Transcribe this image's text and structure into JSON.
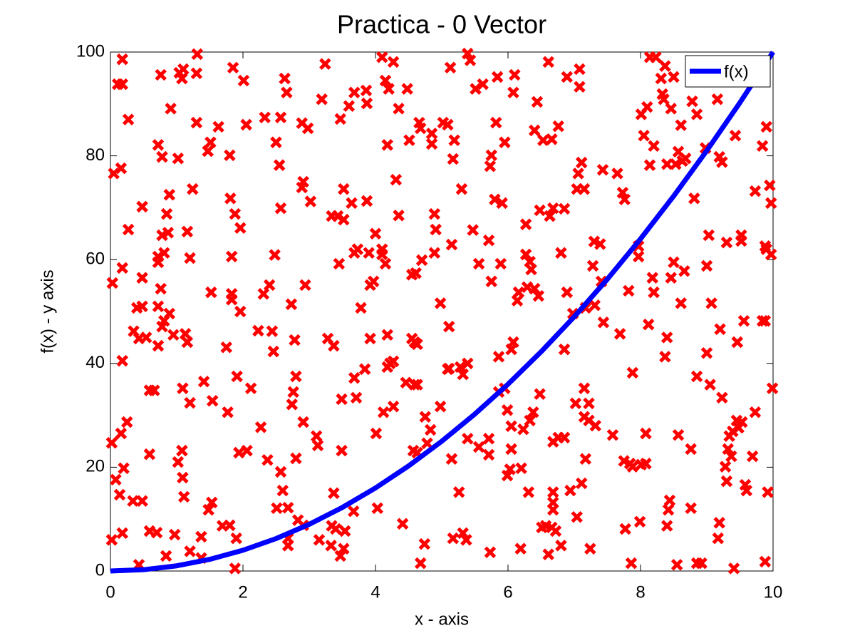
{
  "chart_data": {
    "type": "scatter",
    "title": "Practica - 0 Vector",
    "xlabel": "x - axis",
    "ylabel": "f(x) - y axis",
    "xlim": [
      0,
      10
    ],
    "ylim": [
      0,
      100
    ],
    "xticks": [
      0,
      2,
      4,
      6,
      8,
      10
    ],
    "yticks": [
      0,
      20,
      40,
      60,
      80,
      100
    ],
    "grid": false,
    "legend": "northeast",
    "series": [
      {
        "name": "f(x)",
        "type": "line",
        "color": "#0000ff",
        "x": [
          0,
          0.5,
          1,
          1.5,
          2,
          2.5,
          3,
          3.5,
          4,
          4.5,
          5,
          5.5,
          6,
          6.5,
          7,
          7.5,
          8,
          8.5,
          9,
          9.5,
          10
        ],
        "values": [
          0,
          0.25,
          1,
          2.25,
          4,
          6.25,
          9,
          12.25,
          16,
          20.25,
          25,
          30.25,
          36,
          42.25,
          49,
          56.25,
          64,
          72.25,
          81,
          90.25,
          100
        ]
      },
      {
        "type": "scatter",
        "marker": "x",
        "color": "#ff0000",
        "x": [
          0.18,
          0.11,
          0.18,
          0.27,
          0.05,
          0.16,
          0.27,
          0.03,
          0.18,
          0.18,
          0.02,
          0.16,
          0.25,
          0.2,
          0.08,
          0.14,
          0.02,
          0.18,
          0.34,
          0.48,
          0.43,
          0.35,
          0.43,
          0.54,
          0.4,
          0.48,
          0.48,
          0.48,
          0.59,
          0.59,
          0.66,
          0.59,
          0.7,
          0.84,
          0.97,
          0.76,
          0.72,
          0.78,
          0.78,
          0.87,
          0.89,
          0.85,
          0.72,
          0.81,
          0.72,
          0.76,
          0.72,
          0.81,
          0.78,
          0.89,
          0.95,
          0.72,
          0.91,
          1.02,
          1.04,
          1.1,
          1.08,
          1.16,
          1.2,
          1.13,
          1.16,
          1.09,
          1.2,
          1.08,
          1.02,
          1.09,
          1.11,
          1.2,
          1.37,
          1.37,
          1.24,
          1.3,
          1.31,
          1.3,
          1.41,
          1.48,
          1.53,
          1.54,
          1.52,
          1.47,
          1.51,
          1.63,
          1.75,
          1.77,
          1.69,
          1.8,
          1.8,
          1.81,
          1.83,
          1.83,
          1.83,
          1.85,
          1.88,
          1.96,
          1.91,
          1.96,
          1.88,
          1.9,
          1.94,
          2.06,
          2.01,
          2.05,
          2.12,
          2.23,
          2.27,
          2.31,
          2.33,
          2.37,
          2.4,
          2.44,
          2.46,
          2.48,
          2.5,
          2.55,
          2.57,
          2.57,
          2.51,
          2.57,
          2.6,
          2.68,
          2.68,
          2.68,
          2.63,
          2.66,
          2.73,
          2.78,
          2.74,
          2.76,
          2.8,
          2.8,
          2.83,
          2.91,
          2.89,
          2.89,
          2.91,
          2.94,
          2.91,
          2.98,
          3.02,
          3.11,
          3.13,
          3.15,
          3.19,
          3.24,
          3.28,
          3.37,
          3.33,
          3.34,
          3.4,
          3.37,
          3.34,
          3.43,
          3.52,
          3.45,
          3.47,
          3.52,
          3.49,
          3.49,
          3.47,
          3.52,
          3.54,
          3.6,
          3.68,
          3.64,
          3.68,
          3.73,
          3.68,
          3.71,
          3.67,
          3.78,
          3.86,
          3.87,
          3.87,
          3.84,
          3.9,
          3.92,
          3.92,
          3.97,
          4,
          4.01,
          4.03,
          4.1,
          4.1,
          4.1,
          4.12,
          4.15,
          4.15,
          4.18,
          4.22,
          4.18,
          4.18,
          4.2,
          4.27,
          4.27,
          4.27,
          4.31,
          4.35,
          4.35,
          4.41,
          4.46,
          4.48,
          4.51,
          4.55,
          4.59,
          4.63,
          4.55,
          4.61,
          4.57,
          4.63,
          4.59,
          4.63,
          4.68,
          4.74,
          4.66,
          4.68,
          4.7,
          4.75,
          4.78,
          4.83,
          4.85,
          4.85,
          4.89,
          4.91,
          4.89,
          4.98,
          4.98,
          5.02,
          5.09,
          5.09,
          5.11,
          5.11,
          5.13,
          5.15,
          5.15,
          5.17,
          5.17,
          5.19,
          5.26,
          5.28,
          5.32,
          5.39,
          5.3,
          5.32,
          5.37,
          5.39,
          5.43,
          5.39,
          5.47,
          5.51,
          5.56,
          5.56,
          5.62,
          5.71,
          5.71,
          5.71,
          5.73,
          5.75,
          5.75,
          5.73,
          5.8,
          5.82,
          5.84,
          5.86,
          5.86,
          5.89,
          5.91,
          5.95,
          5.95,
          5.99,
          5.99,
          6.03,
          6.05,
          6.05,
          6.05,
          6.08,
          6.08,
          6.1,
          6.14,
          6.16,
          6.19,
          6.2,
          6.23,
          6.27,
          6.27,
          6.29,
          6.33,
          6.33,
          6.31,
          6.35,
          6.38,
          6.4,
          6.4,
          6.44,
          6.46,
          6.48,
          6.48,
          6.51,
          6.57,
          6.61,
          6.53,
          6.61,
          6.63,
          6.66,
          6.68,
          6.68,
          6.68,
          6.68,
          6.66,
          6.72,
          6.68,
          6.76,
          6.85,
          6.76,
          6.8,
          6.85,
          6.8,
          6.85,
          6.89,
          6.89,
          6.94,
          6.98,
          7.02,
          7.04,
          7.06,
          7.04,
          7.08,
          7.08,
          7.11,
          7.15,
          7.11,
          7.15,
          7.15,
          7.22,
          7.17,
          7.17,
          7.22,
          7.24,
          7.28,
          7.3,
          7.39,
          7.31,
          7.32,
          7.41,
          7.43,
          7.44,
          7.58,
          7.65,
          7.69,
          7.73,
          7.76,
          7.75,
          7.77,
          7.82,
          7.84,
          7.88,
          7.86,
          7.88,
          7.97,
          7.97,
          7.99,
          8.01,
          8.01,
          8.08,
          8.05,
          8.08,
          8.1,
          8.12,
          8.14,
          8.14,
          8.18,
          8.2,
          8.2,
          8.23,
          8.31,
          8.33,
          8.35,
          8.37,
          8.37,
          8.4,
          8.4,
          8.4,
          8.42,
          8.44,
          8.46,
          8.5,
          8.46,
          8.5,
          8.53,
          8.57,
          8.55,
          8.57,
          8.61,
          8.61,
          8.63,
          8.66,
          8.68,
          8.76,
          8.76,
          8.78,
          8.81,
          8.85,
          8.85,
          8.85,
          8.92,
          8.98,
          9,
          9,
          9.03,
          9.05,
          9.07,
          9.16,
          9.17,
          9.19,
          9.23,
          9.19,
          9.2,
          9.23,
          9.28,
          9.3,
          9.3,
          9.32,
          9.34,
          9.37,
          9.39,
          9.41,
          9.43,
          9.45,
          9.46,
          9.48,
          9.52,
          9.52,
          9.53,
          9.56,
          9.58,
          9.6,
          9.69,
          9.73,
          9.73,
          9.84,
          9.84,
          9.88,
          9.88,
          9.88,
          9.9,
          9.9,
          9.92,
          9.95,
          9.97,
          9.97,
          9.99
        ],
        "values": [
          98.6,
          93.8,
          93.8,
          87,
          76.6,
          77.6,
          65.8,
          55.5,
          58.4,
          40.5,
          24.7,
          26.5,
          28.7,
          19.8,
          17.6,
          14.7,
          6,
          7.3,
          13.5,
          13.5,
          1.2,
          46.2,
          44.8,
          45,
          50.7,
          51,
          70.2,
          56.5,
          22.5,
          34.8,
          34.8,
          7.7,
          7.4,
          2.9,
          7,
          95.6,
          82.1,
          79.8,
          64.7,
          65.2,
          72.5,
          68.8,
          60.6,
          61.3,
          59.5,
          54.4,
          51,
          48.2,
          47.1,
          49.6,
          45.5,
          43.4,
          89.1,
          79.5,
          96,
          96.7,
          94.9,
          65.4,
          60.3,
          45.7,
          44.1,
          35.2,
          32.4,
          23.2,
          21,
          18,
          14.3,
          3.8,
          2.5,
          6.6,
          73.6,
          86.4,
          99.6,
          95.9,
          36.5,
          11.8,
          13.2,
          32.8,
          53.7,
          80.9,
          82.6,
          85.6,
          43.1,
          30.6,
          8.7,
          8.8,
          80.1,
          71.8,
          60.6,
          53.4,
          52.3,
          97,
          68.8,
          66.1,
          37.5,
          50,
          0.5,
          6.3,
          22.8,
          23.2,
          94.5,
          86,
          35.2,
          46.3,
          27.7,
          53.4,
          87.4,
          21.4,
          55.1,
          46.2,
          42.3,
          60.9,
          82.6,
          78.2,
          87.4,
          69.9,
          12.1,
          19.1,
          15.5,
          12.2,
          4.9,
          6.3,
          94.9,
          92.2,
          51.4,
          44.5,
          32.1,
          34.5,
          37.5,
          21.7,
          9.8,
          8.8,
          86.3,
          73.9,
          75,
          55.1,
          28.7,
          85.3,
          71.2,
          26,
          24.2,
          6,
          90.9,
          97.7,
          44.8,
          43.4,
          4.9,
          8.7,
          8.1,
          15,
          68.4,
          68.4,
          67.7,
          59.2,
          87.1,
          73.6,
          23.2,
          33.1,
          2.9,
          4.3,
          7.7,
          89.6,
          92.2,
          70.9,
          61.3,
          62,
          37.2,
          33.4,
          11.5,
          50.7,
          92.6,
          90.1,
          71.3,
          38.9,
          61.3,
          44.8,
          55.1,
          55.8,
          65,
          26.5,
          12.1,
          62,
          61,
          99,
          30.6,
          59.2,
          94.5,
          39.3,
          40,
          45.5,
          82.1,
          92.9,
          98.1,
          31.7,
          40.4,
          75.4,
          89.1,
          68.5,
          9.1,
          36.3,
          92.9,
          83,
          44.8,
          44.1,
          43.7,
          57.1,
          57.4,
          23.2,
          22.8,
          35.9,
          35.9,
          1.5,
          5.2,
          86.4,
          85.3,
          59.9,
          29.7,
          24.6,
          27.2,
          84.3,
          82.3,
          61.3,
          65.8,
          68.8,
          51.6,
          31.7,
          86.4,
          86,
          38.9,
          47.1,
          39,
          97,
          62.9,
          21.6,
          79.4,
          6.3,
          83,
          15.2,
          39.3,
          37.9,
          40,
          73.6,
          7.3,
          6,
          99.7,
          98.4,
          25.5,
          65.7,
          92.9,
          59.2,
          23.9,
          93.8,
          25.5,
          63.7,
          22.4,
          3.6,
          55.8,
          80.1,
          78,
          71.6,
          86.4,
          95.2,
          41.3,
          34.5,
          59.2,
          70.9,
          82.6,
          35.2,
          31,
          18.4,
          19.6,
          27.9,
          23.5,
          42.7,
          44.1,
          92.2,
          95.6,
          52.1,
          53.7,
          4.3,
          19.8,
          27.3,
          66.8,
          61,
          54.7,
          59.6,
          29,
          15.2,
          58.1,
          30.6,
          54.4,
          84.9,
          90.4,
          53,
          34.1,
          69.5,
          8.4,
          8.7,
          3.2,
          83,
          98.1,
          68.4,
          83.2,
          69.9,
          15.2,
          13.2,
          11.8,
          8.4,
          7.7,
          24.9,
          25.7,
          25.7,
          85.7,
          61.3,
          69.8,
          4.9,
          42.7,
          95.2,
          53.7,
          15.5,
          49.6,
          32.3,
          10.4,
          76.6,
          73.6,
          93.3,
          96.7,
          78.7,
          73.6,
          16.9,
          35.2,
          29.7,
          29,
          50.7,
          21.6,
          32.3,
          4.3,
          58.8,
          63.5,
          63,
          51.2,
          28,
          55.8,
          77.3,
          47.9,
          26.2,
          76.6,
          45.7,
          72.9,
          71.6,
          21.2,
          8.1,
          54,
          20.7,
          20.1,
          1.5,
          38.2,
          62.6,
          60.6,
          9.5,
          88,
          20.5,
          20.7,
          83.9,
          26.5,
          89.4,
          47.5,
          78.2,
          99,
          56.5,
          53.7,
          81.9,
          99,
          94.9,
          91.9,
          90.9,
          97.3,
          41.3,
          45,
          8.7,
          78.4,
          11.8,
          13.6,
          89.1,
          95.2,
          56.5,
          59.5,
          78.4,
          80.8,
          1.2,
          26.2,
          51.6,
          85.9,
          79,
          57.8,
          79.5,
          12.1,
          23.5,
          90.5,
          71.8,
          88,
          37.5,
          1.5,
          1.5,
          81.5,
          58.8,
          42,
          64.7,
          35.9,
          51.6,
          90.9,
          6.3,
          79.8,
          78.8,
          9.3,
          46.6,
          33.4,
          20.1,
          63.3,
          17.3,
          23.5,
          26,
          22.1,
          26.9,
          0.5,
          83.9,
          29,
          44.1,
          27.6,
          64.7,
          63.6,
          28.7,
          48.2,
          16.6,
          15.5,
          22.1,
          73.2,
          30.6,
          81.9,
          48.2,
          48.2,
          62.6,
          1.8,
          85.6,
          62,
          15.2,
          74.3,
          70.9,
          61,
          35.2
        ]
      }
    ]
  }
}
